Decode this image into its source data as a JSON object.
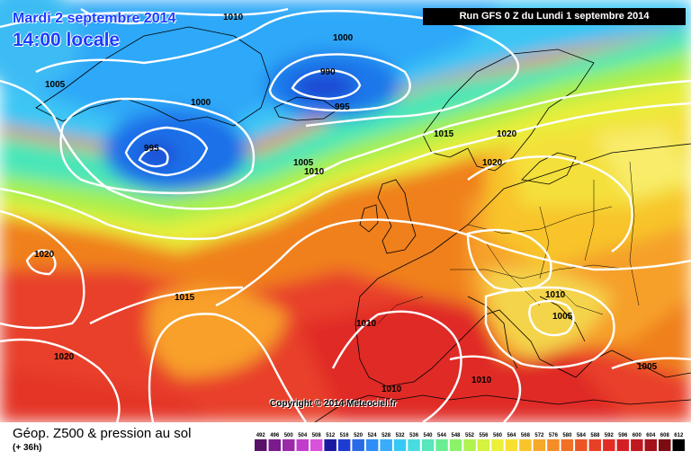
{
  "header": {
    "date_line": "Mardi 2 septembre 2014",
    "time_line": "14:00 locale",
    "run_info": "Run GFS 0 Z du Lundi 1 septembre 2014"
  },
  "footer": {
    "copyright": "Copyright © 2014 Meteociel.fr",
    "caption": "Géop. Z500 & pression au sol",
    "forecast_offset": "(+ 36h)"
  },
  "isobar_labels": [
    "1010",
    "1000",
    "990",
    "995",
    "1005",
    "1000",
    "995",
    "1015",
    "1020",
    "1020",
    "1005",
    "1010",
    "1020",
    "1015",
    "1010",
    "1005",
    "1010",
    "1020",
    "1010",
    "1010",
    "1005"
  ],
  "legend": {
    "values": [
      "492",
      "496",
      "500",
      "504",
      "508",
      "512",
      "516",
      "520",
      "524",
      "528",
      "532",
      "536",
      "540",
      "544",
      "548",
      "552",
      "556",
      "560",
      "564",
      "568",
      "572",
      "576",
      "580",
      "584",
      "588",
      "592",
      "596",
      "600",
      "604",
      "608",
      "612"
    ],
    "colors": [
      "#5a1068",
      "#7a1a8c",
      "#9a2aa8",
      "#c23ccc",
      "#d852dc",
      "#1a1aa0",
      "#1e3cd2",
      "#2a6ae6",
      "#2e8ef6",
      "#3aacfa",
      "#38c8f6",
      "#48dce0",
      "#58e6bc",
      "#6aee94",
      "#8cf26a",
      "#b0f24e",
      "#d4f23e",
      "#ecf036",
      "#f8e030",
      "#f8c42c",
      "#f6a82a",
      "#f48c28",
      "#f07026",
      "#ec5626",
      "#e84026",
      "#e02e26",
      "#d42024",
      "#c01820",
      "#a4121a",
      "#7c0c12",
      "#000000"
    ]
  }
}
